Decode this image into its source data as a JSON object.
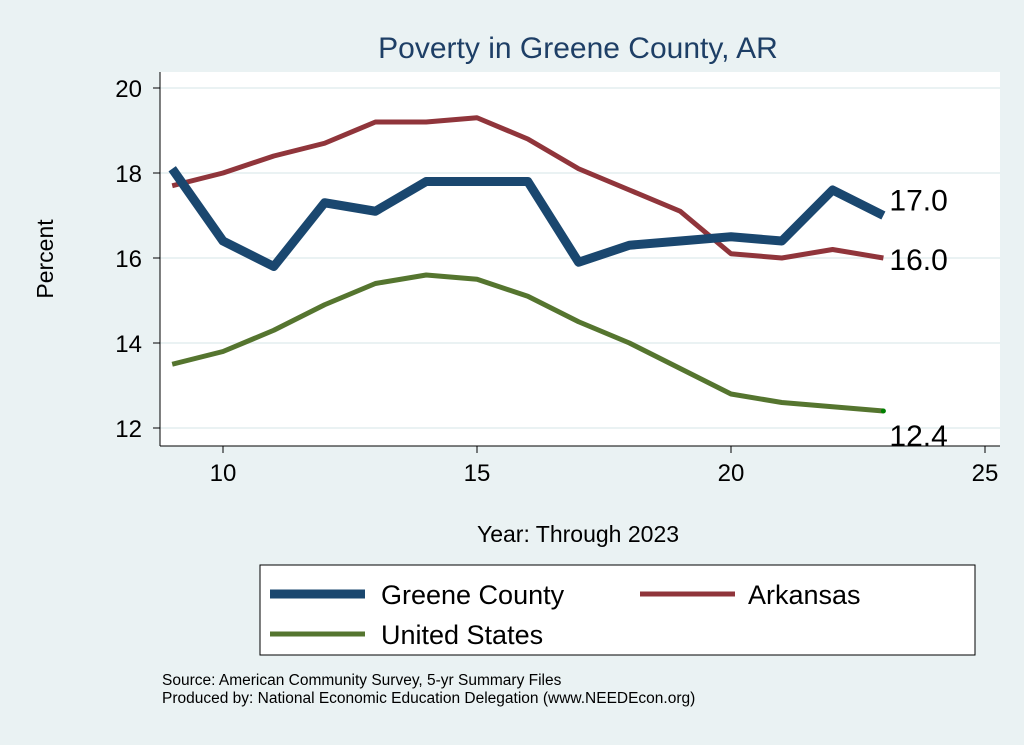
{
  "chart_data": {
    "type": "line",
    "title": "Poverty in Greene County, AR",
    "xlabel": "Year: Through 2023",
    "ylabel": "Percent",
    "xlim": [
      8.7,
      25.2
    ],
    "ylim": [
      11.6,
      20.4
    ],
    "xticks": [
      10,
      15,
      20,
      25
    ],
    "yticks": [
      12,
      14,
      16,
      18,
      20
    ],
    "grid": true,
    "legend_position": "bottom",
    "x": [
      9,
      10,
      11,
      12,
      13,
      14,
      15,
      16,
      17,
      18,
      19,
      20,
      21,
      22,
      23
    ],
    "series": [
      {
        "name": "Greene County",
        "color": "#1a476f",
        "values": [
          18.1,
          16.4,
          15.8,
          17.3,
          17.1,
          17.8,
          17.8,
          17.8,
          15.9,
          16.3,
          16.4,
          16.5,
          16.4,
          17.6,
          17.0
        ],
        "end_label": "17.0"
      },
      {
        "name": "Arkansas",
        "color": "#90353b",
        "values": [
          17.7,
          18.0,
          18.4,
          18.7,
          19.2,
          19.2,
          19.3,
          18.8,
          18.1,
          17.6,
          17.1,
          16.1,
          16.0,
          16.2,
          16.0
        ],
        "end_label": "16.0"
      },
      {
        "name": "United States",
        "color": "#55752f",
        "values": [
          13.5,
          13.8,
          14.3,
          14.9,
          15.4,
          15.6,
          15.5,
          15.1,
          14.5,
          14.0,
          13.4,
          12.8,
          12.6,
          12.5,
          12.4
        ],
        "end_label": "12.4"
      }
    ]
  },
  "footer": {
    "source": "Source: American Community Survey, 5-yr Summary Files",
    "produced": "Produced by: National Economic Education Delegation (www.NEEDEcon.org)"
  }
}
